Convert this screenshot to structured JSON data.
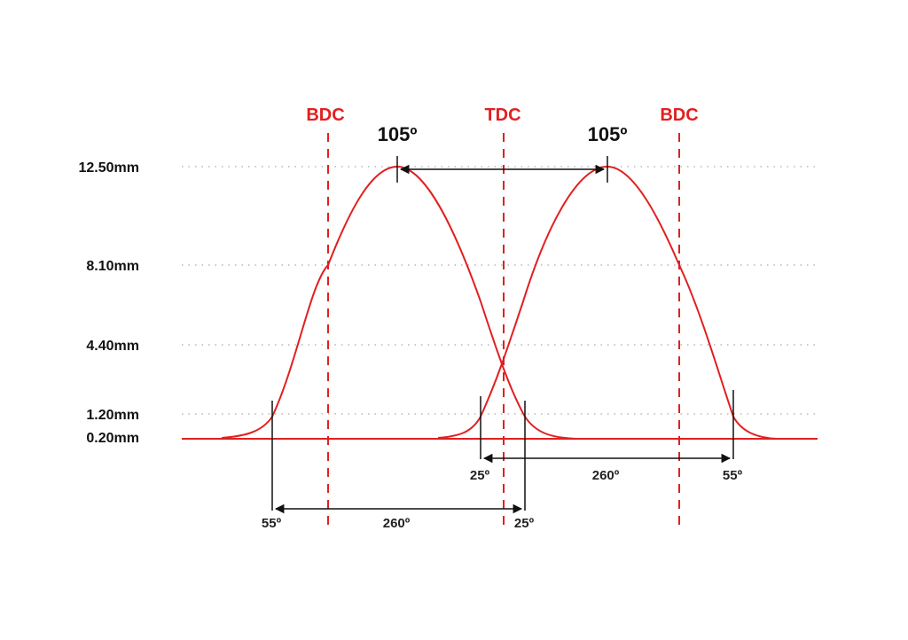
{
  "diagram": {
    "colors": {
      "curve": "#e02020",
      "marker": "#e02020",
      "annotation": "#111111",
      "grid": "#b8b8b8"
    },
    "lift_levels": [
      "12.50mm",
      "8.10mm",
      "4.40mm",
      "1.20mm",
      "0.20mm"
    ],
    "markers": [
      "BDC",
      "TDC",
      "BDC"
    ],
    "lobe_separation": [
      "105º",
      "105º"
    ],
    "intake_duration": {
      "open": "55º",
      "duration": "260º",
      "close": "25º"
    },
    "exhaust_duration": {
      "open": "25º",
      "duration": "260º",
      "close": "55º"
    }
  }
}
